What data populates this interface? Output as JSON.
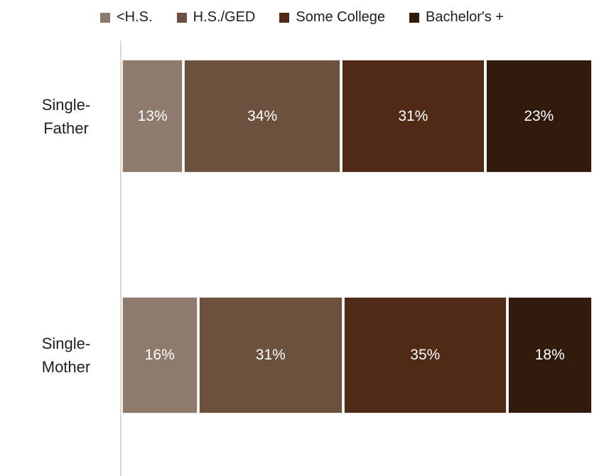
{
  "chart_data": {
    "type": "bar",
    "stacked": true,
    "orientation": "horizontal",
    "title": "",
    "unit": "%",
    "legend_position": "top",
    "grid": false,
    "xlim": [
      0,
      100
    ],
    "categories": [
      "Single-\nFather",
      "Single-\nMother"
    ],
    "series": [
      {
        "name": "<H.S.",
        "color": "#8F7A6E",
        "values": [
          13,
          16
        ]
      },
      {
        "name": "H.S./GED",
        "color": "#6C513F",
        "values": [
          34,
          31
        ]
      },
      {
        "name": "Some College",
        "color": "#4F2A15",
        "values": [
          31,
          35
        ]
      },
      {
        "name": "Bachelor's +",
        "color": "#31190C",
        "values": [
          23,
          18
        ]
      }
    ],
    "colors": {
      "axis_line": "#D9D9D9",
      "segment_label_text": "#FFFFFF",
      "category_label_text": "#1F1F1F",
      "background": "#FFFFFF"
    }
  }
}
